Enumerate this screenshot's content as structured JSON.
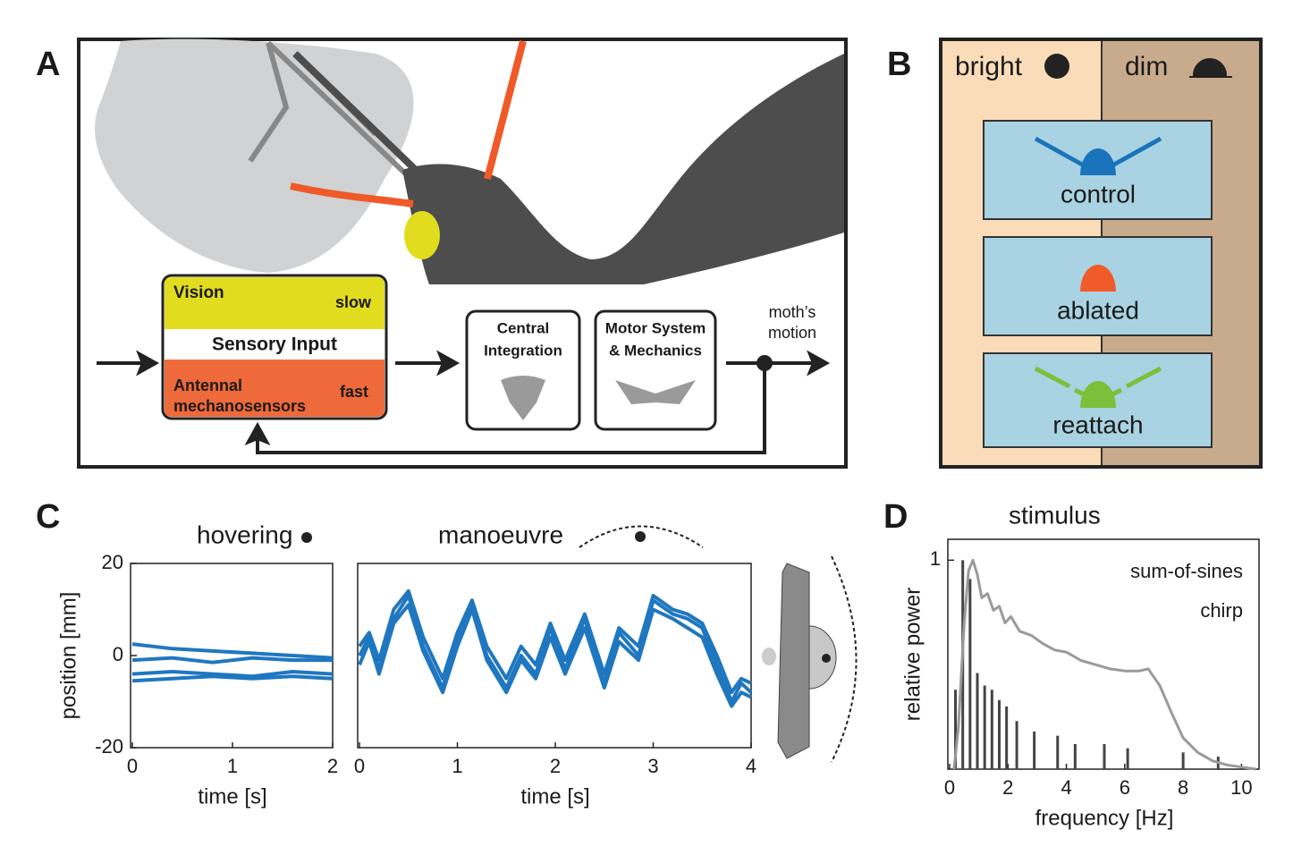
{
  "panels": {
    "A": {
      "letter": "A",
      "vision": "Vision",
      "slow": "slow",
      "sensory_input": "Sensory Input",
      "antennal": [
        "Antennal",
        "mechanosensors"
      ],
      "fast": "fast",
      "central": [
        "Central",
        "Integration"
      ],
      "motor": [
        "Motor System",
        "& Mechanics"
      ],
      "output": [
        "moth’s",
        "motion"
      ]
    },
    "B": {
      "letter": "B",
      "bright": "bright",
      "dim": "dim",
      "conditions": [
        "control",
        "ablated",
        "reattach"
      ]
    },
    "C": {
      "letter": "C"
    },
    "D": {
      "letter": "D"
    }
  },
  "chart_data": [
    {
      "type": "line",
      "title": "hovering",
      "xlabel": "time [s]",
      "ylabel": "position [mm]",
      "xlim": [
        0,
        2
      ],
      "ylim": [
        -20,
        20
      ],
      "xticks": [
        0,
        1,
        2
      ],
      "yticks": [
        -20,
        0,
        20
      ],
      "color": "#1f77c0",
      "series": [
        {
          "x": [
            0,
            0.4,
            0.8,
            1.2,
            1.6,
            2
          ],
          "values": [
            2.5,
            1.5,
            1,
            0.5,
            0,
            -0.5
          ]
        },
        {
          "x": [
            0,
            0.4,
            0.8,
            1.2,
            1.6,
            2
          ],
          "values": [
            -1,
            -0.5,
            -1.5,
            -0.5,
            -1,
            -1
          ]
        },
        {
          "x": [
            0,
            0.4,
            0.8,
            1.2,
            1.6,
            2
          ],
          "values": [
            -4,
            -3.5,
            -4,
            -4.5,
            -3.5,
            -4
          ]
        },
        {
          "x": [
            0,
            0.4,
            0.8,
            1.2,
            1.6,
            2
          ],
          "values": [
            -5.5,
            -5,
            -4.5,
            -5,
            -4.5,
            -5
          ]
        }
      ]
    },
    {
      "type": "line",
      "title": "manoeuvre",
      "xlabel": "time [s]",
      "xlim": [
        0,
        4
      ],
      "ylim": [
        -20,
        20
      ],
      "xticks": [
        0,
        1,
        2,
        3,
        4
      ],
      "color": "#1f77c0",
      "series": [
        {
          "x": [
            0,
            0.1,
            0.2,
            0.35,
            0.5,
            0.65,
            0.85,
            1.0,
            1.15,
            1.3,
            1.5,
            1.65,
            1.8,
            1.95,
            2.1,
            2.3,
            2.5,
            2.65,
            2.85,
            3.0,
            3.2,
            3.35,
            3.5,
            3.65,
            3.8,
            3.9,
            4.0
          ],
          "values": [
            0,
            4,
            -3,
            8,
            13,
            2,
            -7,
            4,
            11,
            0,
            -7,
            0,
            -4,
            6,
            -3,
            8,
            -6,
            5,
            0,
            12,
            9,
            8,
            6,
            -2,
            -10,
            -6,
            -8
          ]
        },
        {
          "x": [
            0,
            0.1,
            0.2,
            0.35,
            0.5,
            0.65,
            0.85,
            1.0,
            1.15,
            1.3,
            1.5,
            1.65,
            1.8,
            1.95,
            2.1,
            2.3,
            2.5,
            2.65,
            2.85,
            3.0,
            3.2,
            3.35,
            3.5,
            3.65,
            3.8,
            3.9,
            4.0
          ],
          "values": [
            2,
            5,
            -1,
            10,
            14,
            4,
            -5,
            5,
            12,
            2,
            -5,
            2,
            -2,
            7,
            -1,
            9,
            -4,
            6,
            2,
            13,
            10,
            9,
            7,
            0,
            -8,
            -5,
            -6
          ]
        },
        {
          "x": [
            0,
            0.1,
            0.2,
            0.35,
            0.5,
            0.65,
            0.85,
            1.0,
            1.15,
            1.3,
            1.5,
            1.65,
            1.8,
            1.95,
            2.1,
            2.3,
            2.5,
            2.65,
            2.85,
            3.0,
            3.2,
            3.35,
            3.5,
            3.65,
            3.8,
            3.9,
            4.0
          ],
          "values": [
            -2,
            3,
            -4,
            7,
            11,
            1,
            -8,
            2,
            10,
            -1,
            -8,
            -1,
            -5,
            4,
            -4,
            6,
            -7,
            3,
            -1,
            10,
            8,
            6,
            4,
            -4,
            -11,
            -8,
            -9
          ]
        }
      ]
    },
    {
      "type": "line",
      "title": "stimulus",
      "xlabel": "frequency [Hz]",
      "ylabel": "relative power",
      "xlim": [
        0,
        10.6
      ],
      "ylim": [
        0,
        1.1
      ],
      "xticks": [
        0,
        2,
        4,
        6,
        8,
        10
      ],
      "yticks": [
        1
      ],
      "legend": "upper right",
      "series": [
        {
          "name": "sum-of-sines",
          "color": "#444444",
          "style": "stem",
          "x": [
            0.2,
            0.45,
            0.7,
            0.95,
            1.2,
            1.45,
            1.7,
            1.95,
            2.3,
            2.9,
            3.7,
            4.3,
            5.3,
            6.1,
            8.0,
            9.2
          ],
          "values": [
            0.38,
            1.0,
            0.91,
            0.46,
            0.4,
            0.38,
            0.33,
            0.3,
            0.23,
            0.18,
            0.16,
            0.12,
            0.12,
            0.1,
            0.08,
            0.06
          ]
        },
        {
          "name": "chirp",
          "color": "#9a9a9a",
          "x": [
            0.15,
            0.3,
            0.5,
            0.65,
            0.8,
            0.95,
            1.1,
            1.3,
            1.5,
            1.7,
            1.9,
            2.1,
            2.4,
            2.8,
            3.2,
            3.6,
            4.0,
            4.5,
            5.0,
            5.5,
            6.0,
            6.5,
            6.8,
            7.2,
            7.6,
            8.0,
            8.5,
            9.0,
            9.5,
            10.0,
            10.5
          ],
          "values": [
            0,
            0.2,
            0.7,
            0.95,
            1.0,
            0.93,
            0.82,
            0.84,
            0.76,
            0.78,
            0.7,
            0.73,
            0.66,
            0.64,
            0.6,
            0.57,
            0.56,
            0.52,
            0.5,
            0.48,
            0.47,
            0.47,
            0.48,
            0.4,
            0.27,
            0.15,
            0.08,
            0.04,
            0.02,
            0.01,
            0
          ]
        }
      ]
    }
  ]
}
